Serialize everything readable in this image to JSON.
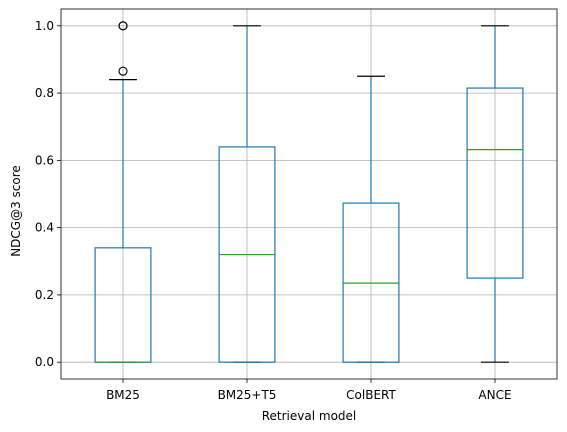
{
  "chart_data": {
    "type": "box",
    "title": "",
    "xlabel": "Retrieval model",
    "ylabel": "NDCG@3 score",
    "ylim": [
      -0.05,
      1.05
    ],
    "yticks": [
      0.0,
      0.2,
      0.4,
      0.6,
      0.8,
      1.0
    ],
    "ytick_labels": [
      "0.0",
      "0.2",
      "0.4",
      "0.6",
      "0.8",
      "1.0"
    ],
    "grid": true,
    "categories": [
      "BM25",
      "BM25+T5",
      "ColBERT",
      "ANCE"
    ],
    "boxes": [
      {
        "name": "BM25",
        "whisker_low": 0.0,
        "q1": 0.0,
        "median": 0.0,
        "q3": 0.34,
        "whisker_high": 0.84,
        "outliers": [
          0.865,
          1.0,
          1.0
        ]
      },
      {
        "name": "BM25+T5",
        "whisker_low": 0.0,
        "q1": 0.0,
        "median": 0.32,
        "q3": 0.64,
        "whisker_high": 1.0,
        "outliers": []
      },
      {
        "name": "ColBERT",
        "whisker_low": 0.0,
        "q1": 0.0,
        "median": 0.235,
        "q3": 0.473,
        "whisker_high": 0.85,
        "outliers": []
      },
      {
        "name": "ANCE",
        "whisker_low": 0.0,
        "q1": 0.25,
        "median": 0.632,
        "q3": 0.815,
        "whisker_high": 1.0,
        "outliers": []
      }
    ],
    "colors": {
      "box": "#1f77b4",
      "median": "#2ca02c",
      "whisker_cap": "#000000",
      "grid": "#b0b0b0",
      "axes": "#000000"
    }
  }
}
